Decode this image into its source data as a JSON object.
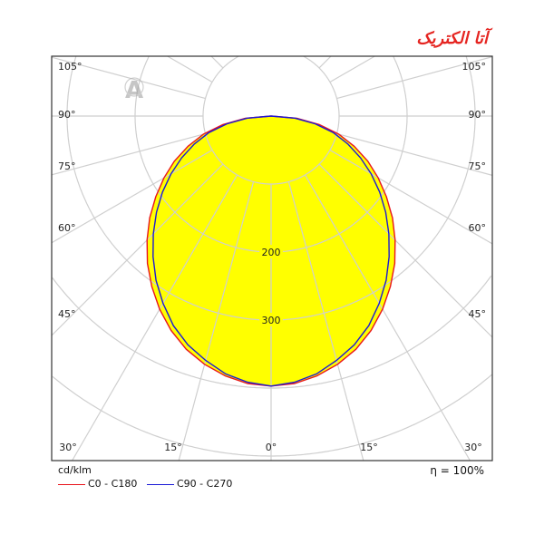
{
  "logo_text": "آتا الکتریک",
  "watermark": "A",
  "chart_data": {
    "type": "polar",
    "unit_label": "cd/klm",
    "efficiency_label": "η = 100%",
    "radial_ticks": [
      100,
      200,
      300,
      400,
      500,
      600
    ],
    "radial_tick_labels": [
      "200",
      "300"
    ],
    "angle_labels_left": [
      "105°",
      "90°",
      "75°",
      "60°",
      "45°"
    ],
    "angle_labels_right": [
      "105°",
      "90°",
      "75°",
      "60°",
      "45°"
    ],
    "angle_labels_bottom": [
      "30°",
      "15°",
      "0°",
      "15°",
      "30°"
    ],
    "grid": true,
    "fill_color": "#ffff00",
    "angles_deg": [
      0,
      5,
      10,
      15,
      20,
      25,
      30,
      35,
      40,
      45,
      50,
      55,
      60,
      65,
      70,
      75,
      80,
      85,
      90
    ],
    "series": [
      {
        "name": "C0 - C180",
        "color": "#e8141c",
        "values": [
          397,
          395,
          388,
          378,
          365,
          348,
          328,
          306,
          283,
          258,
          233,
          207,
          182,
          157,
          130,
          103,
          72,
          38,
          0
        ]
      },
      {
        "name": "C90 - C270",
        "color": "#1a1ad6",
        "values": [
          397,
          393,
          385,
          372,
          358,
          340,
          318,
          295,
          270,
          245,
          220,
          195,
          170,
          145,
          120,
          95,
          66,
          35,
          0
        ]
      }
    ]
  }
}
